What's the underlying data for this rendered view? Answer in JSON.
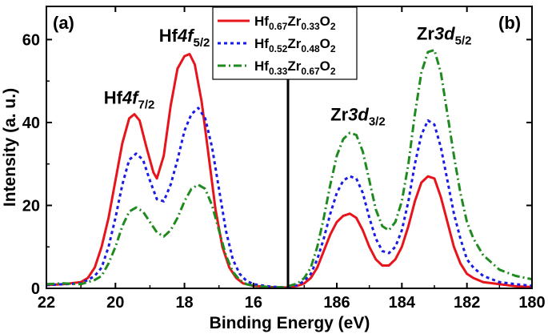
{
  "chart_data": {
    "type": "line",
    "xlabel": "Binding Energy (eV)",
    "ylabel": "Intensity (a. u.)",
    "ylim": [
      0,
      68
    ],
    "yticks": [
      "0",
      "20",
      "40",
      "60"
    ],
    "legend": {
      "placement": "top-center",
      "entries": [
        {
          "parts": [
            "Hf",
            "0.67",
            "Zr",
            "0.33",
            "O",
            "2"
          ]
        },
        {
          "parts": [
            "Hf",
            "0.52",
            "Zr",
            "0.48",
            "O",
            "2"
          ]
        },
        {
          "parts": [
            "Hf",
            "0.33",
            "Zr",
            "0.67",
            "O",
            "2"
          ]
        }
      ]
    },
    "styles": [
      {
        "color": "#e8141b",
        "dash": "",
        "width": 3
      },
      {
        "color": "#1a1ae6",
        "dash": "4 4",
        "width": 3
      },
      {
        "color": "#1f8a1f",
        "dash": "10 4 2 4",
        "width": 3
      }
    ],
    "panels": [
      {
        "label": "(a)",
        "xlim": [
          22,
          15
        ],
        "xticks": [
          "22",
          "20",
          "18",
          "16"
        ],
        "annotations": [
          {
            "base": "Hf",
            "italic": "4f",
            "sub": "7/2",
            "x": 19.6,
            "y": 44.5
          },
          {
            "base": "Hf",
            "italic": "4f",
            "sub": "5/2",
            "x": 18.0,
            "y": 59.5
          }
        ],
        "series": [
          {
            "x": [
              22.0,
              21.5,
              21.0,
              20.8,
              20.6,
              20.4,
              20.2,
              20.0,
              19.8,
              19.6,
              19.45,
              19.3,
              19.1,
              18.9,
              18.8,
              18.6,
              18.4,
              18.2,
              18.0,
              17.85,
              17.7,
              17.5,
              17.3,
              17.1,
              16.9,
              16.7,
              16.5,
              16.3,
              16.0,
              15.5,
              15.0
            ],
            "values": [
              0.8,
              1.0,
              1.5,
              2.5,
              5,
              10,
              17,
              26,
              35,
              41,
              42,
              40.5,
              34,
              28,
              26.5,
              32,
              44,
              53,
              56,
              56.5,
              54,
              45,
              32,
              19,
              10,
              5,
              2.5,
              1.2,
              0.6,
              0.3,
              0.2
            ]
          },
          {
            "x": [
              22.0,
              21.5,
              21.0,
              20.8,
              20.6,
              20.4,
              20.2,
              20.0,
              19.8,
              19.6,
              19.4,
              19.2,
              19.0,
              18.8,
              18.6,
              18.4,
              18.2,
              18.0,
              17.8,
              17.6,
              17.4,
              17.2,
              17.0,
              16.8,
              16.6,
              16.4,
              16.2,
              16.0,
              15.5,
              15.0
            ],
            "values": [
              0.8,
              1.0,
              1.2,
              2,
              3,
              5,
              10,
              17,
              25,
              31,
              32.5,
              31,
              26,
              21.5,
              21,
              25,
              31,
              38,
              42,
              43.5,
              41,
              34,
              24,
              14,
              7,
              3.5,
              1.8,
              1,
              0.4,
              0.2
            ]
          },
          {
            "x": [
              22.0,
              21.5,
              21.0,
              20.8,
              20.6,
              20.4,
              20.2,
              20.0,
              19.8,
              19.6,
              19.4,
              19.2,
              19.0,
              18.8,
              18.6,
              18.4,
              18.2,
              18.0,
              17.8,
              17.6,
              17.4,
              17.2,
              17.0,
              16.8,
              16.6,
              16.4,
              16.2,
              16.0,
              15.5,
              15.0
            ],
            "values": [
              1.0,
              1.2,
              1.0,
              1.5,
              2,
              3,
              6,
              10,
              15,
              18.5,
              19.5,
              18.5,
              16,
              13.5,
              12.5,
              14,
              17,
              21,
              24,
              25,
              24,
              20,
              14,
              8,
              4,
              2,
              1,
              0.6,
              0.3,
              0.2
            ]
          }
        ]
      },
      {
        "label": "(b)",
        "xlim": [
          187.5,
          180
        ],
        "xticks": [
          "186",
          "184",
          "182",
          "180"
        ],
        "annotations": [
          {
            "base": "Zr",
            "italic": "3d",
            "sub": "3/2",
            "x": 185.35,
            "y": 40.5
          },
          {
            "base": "Zr",
            "italic": "3d",
            "sub": "5/2",
            "x": 182.7,
            "y": 60
          }
        ],
        "series": [
          {
            "x": [
              187.5,
              187.2,
              187.0,
              186.8,
              186.6,
              186.4,
              186.2,
              186.0,
              185.8,
              185.6,
              185.4,
              185.2,
              185.0,
              184.8,
              184.6,
              184.4,
              184.2,
              184.0,
              183.8,
              183.6,
              183.4,
              183.2,
              183.0,
              182.8,
              182.6,
              182.4,
              182.2,
              182.0,
              181.8,
              181.5,
              181.0,
              180.5,
              180.0
            ],
            "values": [
              0.3,
              0.6,
              1.2,
              2.5,
              5,
              9,
              13,
              16,
              17.5,
              18,
              17,
              14,
              10,
              7,
              5.5,
              5.5,
              7,
              10,
              15,
              21,
              25.5,
              27,
              26.5,
              22,
              16,
              10,
              6,
              3.5,
              2.5,
              1.5,
              1,
              0.5,
              0.3
            ]
          },
          {
            "x": [
              187.5,
              187.2,
              187.0,
              186.8,
              186.6,
              186.4,
              186.2,
              186.0,
              185.8,
              185.6,
              185.4,
              185.2,
              185.0,
              184.8,
              184.6,
              184.4,
              184.2,
              184.0,
              183.8,
              183.6,
              183.4,
              183.2,
              183.0,
              182.8,
              182.6,
              182.4,
              182.2,
              182.0,
              181.8,
              181.5,
              181.0,
              180.5,
              180.0
            ],
            "values": [
              0.4,
              0.8,
              1.8,
              3.5,
              7,
              12,
              18,
              23,
              26,
              27,
              26.5,
              23,
              17,
              12,
              9,
              8.5,
              10,
              14,
              21,
              30,
              37,
              40.5,
              39.5,
              34,
              26,
              18,
              12,
              7,
              5,
              3,
              1.5,
              1,
              0.6
            ]
          },
          {
            "x": [
              187.5,
              187.2,
              187.0,
              186.8,
              186.6,
              186.4,
              186.2,
              186.0,
              185.8,
              185.6,
              185.4,
              185.2,
              185.0,
              184.8,
              184.6,
              184.4,
              184.2,
              184.0,
              183.8,
              183.6,
              183.4,
              183.2,
              183.0,
              182.8,
              182.6,
              182.4,
              182.2,
              182.0,
              181.8,
              181.5,
              181.0,
              180.5,
              180.0
            ],
            "values": [
              0.5,
              1.2,
              2.5,
              5,
              10,
              17,
              25,
              32,
              36,
              37.5,
              37,
              33,
              26,
              19,
              15,
              14,
              16,
              21,
              30,
              42,
              52,
              57,
              57.5,
              52,
              42,
              32,
              23,
              16,
              12,
              8,
              4.5,
              3,
              2.2
            ]
          }
        ]
      }
    ]
  }
}
